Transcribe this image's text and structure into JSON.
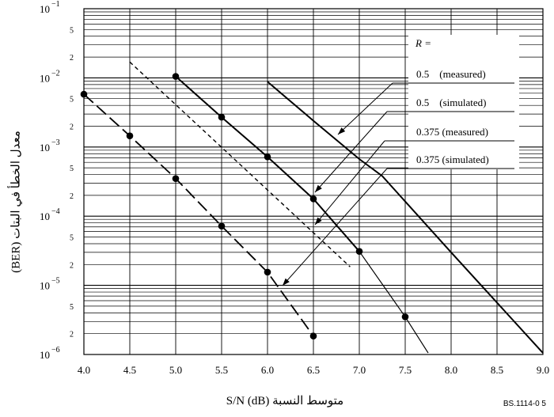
{
  "chart_data": {
    "type": "line",
    "ylabel": "معدل الخطأ في البتات (BER)",
    "xlabel": "متوسط النسبة S/N (dB)",
    "figure_id": "BS.1114-0 5",
    "xlim": [
      4.0,
      9.0
    ],
    "ylim": [
      1e-06,
      0.1
    ],
    "yscale": "log",
    "grid": true,
    "x_ticks": [
      "4.0",
      "4.5",
      "5.0",
      "5.5",
      "6.0",
      "6.5",
      "7.0",
      "7.5",
      "8.0",
      "8.5",
      "9.0"
    ],
    "y_decade_ticks": [
      {
        "base": "10",
        "exp": "−1"
      },
      {
        "base": "10",
        "exp": "−2"
      },
      {
        "base": "10",
        "exp": "−3"
      },
      {
        "base": "10",
        "exp": "−4"
      },
      {
        "base": "10",
        "exp": "−5"
      },
      {
        "base": "10",
        "exp": "−6"
      }
    ],
    "y_minor_labels": [
      "5",
      "2"
    ],
    "legend_title": "R =",
    "legend": [
      "0.5    (measured)",
      "0.5    (simulated)",
      "0.375 (measured)",
      "0.375 (simulated)"
    ],
    "series": [
      {
        "name": "0.5    (measured)",
        "style": "solid-thick",
        "points": [
          [
            6.0,
            0.0088
          ],
          [
            6.5,
            0.0024
          ],
          [
            7.0,
            0.00067
          ],
          [
            7.25,
            0.00038
          ],
          [
            8.0,
            3e-05
          ],
          [
            9.0,
            1.05e-06
          ]
        ]
      },
      {
        "name": "0.5    (simulated)",
        "style": "solid-mixed",
        "points": [
          [
            5.0,
            0.0105
          ],
          [
            5.5,
            0.0027
          ],
          [
            6.0,
            0.00072
          ],
          [
            6.5,
            0.000178
          ],
          [
            7.0,
            3.1e-05
          ],
          [
            7.5,
            3.5e-06
          ],
          [
            7.75,
            1.05e-06
          ]
        ],
        "markers": [
          [
            5.0,
            0.0105
          ],
          [
            5.5,
            0.0027
          ],
          [
            6.0,
            0.00072
          ],
          [
            6.5,
            0.000178
          ],
          [
            7.0,
            3.1e-05
          ],
          [
            7.5,
            3.5e-06
          ]
        ]
      },
      {
        "name": "0.375 (measured)",
        "style": "long-dash",
        "points": [
          [
            4.0,
            0.0058
          ],
          [
            4.5,
            0.00145
          ],
          [
            5.0,
            0.00035
          ],
          [
            5.5,
            7.2e-05
          ],
          [
            6.0,
            1.55e-05
          ],
          [
            6.5,
            1.85e-06
          ]
        ],
        "markers": [
          [
            4.0,
            0.0058
          ],
          [
            4.5,
            0.00145
          ],
          [
            5.0,
            0.00035
          ],
          [
            5.5,
            7.2e-05
          ],
          [
            6.0,
            1.55e-05
          ],
          [
            6.5,
            1.85e-06
          ]
        ]
      },
      {
        "name": "0.375 (simulated)",
        "style": "short-dash",
        "points": [
          [
            4.5,
            0.017
          ],
          [
            6.9,
            1.85e-05
          ]
        ]
      }
    ]
  }
}
